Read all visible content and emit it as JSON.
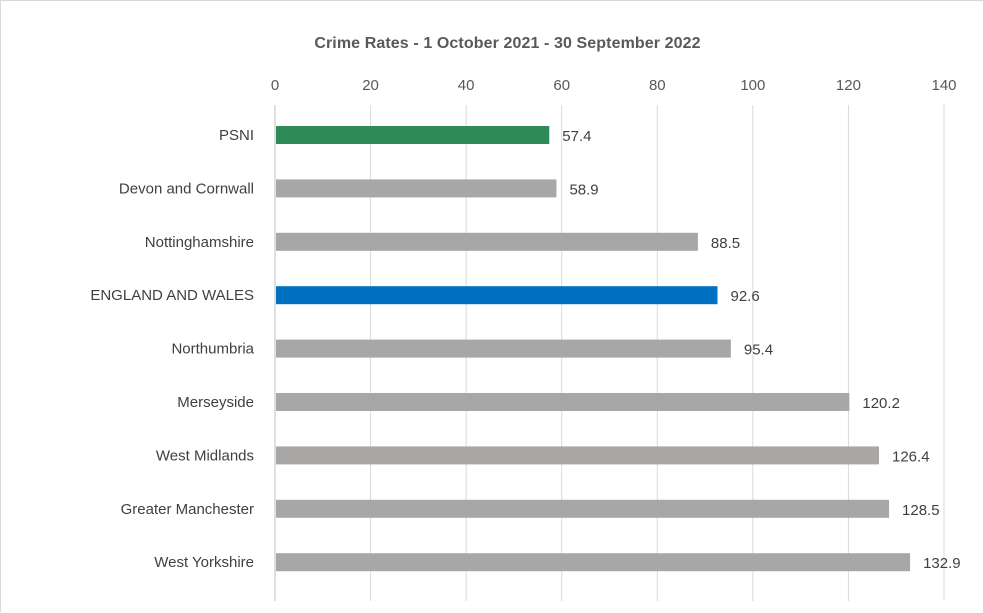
{
  "chart_data": {
    "type": "bar",
    "orientation": "horizontal",
    "title": "Crime Rates - 1 October 2021 - 30 September 2022",
    "xlabel": "",
    "ylabel": "",
    "xlim": [
      0,
      140
    ],
    "x_ticks": [
      0,
      20,
      40,
      60,
      80,
      100,
      120,
      140
    ],
    "x_axis_position": "top",
    "grid": true,
    "legend": "none",
    "categories": [
      "PSNI",
      "Devon and Cornwall",
      "Nottinghamshire",
      "ENGLAND AND WALES",
      "Northumbria",
      "Merseyside",
      "West Midlands",
      "Greater Manchester",
      "West Yorkshire"
    ],
    "values": [
      57.4,
      58.9,
      88.5,
      92.6,
      95.4,
      120.2,
      126.4,
      128.5,
      132.9
    ],
    "data_labels": [
      "57.4",
      "58.9",
      "88.5",
      "92.6",
      "95.4",
      "120.2",
      "126.4",
      "128.5",
      "132.9"
    ],
    "bar_colors": [
      "#2e8b57",
      "#a9a6a6",
      "#a9a6a6",
      "#0070c0",
      "#a9a6a6",
      "#a9a6a6",
      "#a9a6a6",
      "#a9a6a6",
      "#a9a6a6"
    ]
  }
}
